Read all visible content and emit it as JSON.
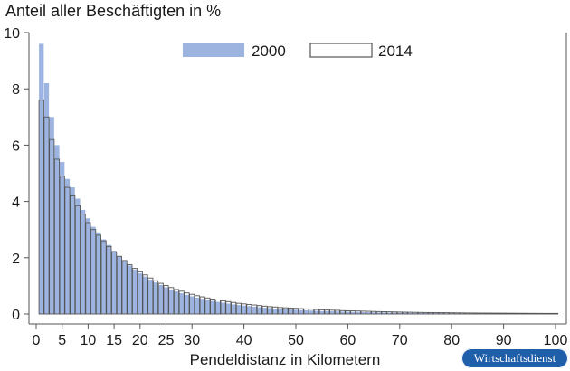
{
  "chart_data": {
    "type": "bar",
    "ylabel": "Anteil aller Beschäftigten in %",
    "xlabel": "Pendeldistanz in Kilometern",
    "xlim": [
      0,
      100
    ],
    "ylim": [
      0,
      10
    ],
    "y_ticks": [
      0,
      2,
      4,
      6,
      8,
      10
    ],
    "x_ticks": [
      0,
      5,
      10,
      15,
      20,
      25,
      30,
      40,
      50,
      60,
      70,
      80,
      90,
      100
    ],
    "legend_position": "top-center",
    "colors": {
      "2000": "#9db4e0",
      "2014_outline": "#555555",
      "axis": "#555555"
    },
    "series": [
      {
        "name": "2000",
        "style": "filled",
        "x": [
          1,
          2,
          3,
          4,
          5,
          6,
          7,
          8,
          9,
          10,
          11,
          12,
          13,
          14,
          15,
          16,
          17,
          18,
          19,
          20,
          21,
          22,
          23,
          24,
          25,
          26,
          27,
          28,
          29,
          30,
          31,
          32,
          33,
          34,
          35,
          36,
          37,
          38,
          39,
          40,
          41,
          42,
          43,
          44,
          45,
          46,
          47,
          48,
          49,
          50,
          51,
          52,
          53,
          54,
          55,
          56,
          57,
          58,
          59,
          60,
          61,
          62,
          63,
          64,
          65,
          66,
          67,
          68,
          69,
          70,
          71,
          72,
          73,
          74,
          75,
          76,
          77,
          78,
          79,
          80,
          81,
          82,
          83,
          84,
          85,
          86,
          87,
          88,
          89,
          90,
          91,
          92,
          93,
          94,
          95,
          96,
          97,
          98,
          99,
          100
        ],
        "values": [
          9.6,
          8.2,
          7.0,
          6.0,
          5.4,
          4.8,
          4.5,
          4.1,
          3.7,
          3.4,
          3.1,
          2.9,
          2.65,
          2.45,
          2.25,
          2.05,
          1.88,
          1.72,
          1.58,
          1.45,
          1.33,
          1.22,
          1.12,
          1.03,
          0.95,
          0.87,
          0.8,
          0.74,
          0.68,
          0.63,
          0.58,
          0.54,
          0.5,
          0.46,
          0.43,
          0.4,
          0.37,
          0.34,
          0.32,
          0.3,
          0.28,
          0.26,
          0.24,
          0.22,
          0.21,
          0.19,
          0.18,
          0.17,
          0.16,
          0.15,
          0.14,
          0.13,
          0.12,
          0.11,
          0.105,
          0.1,
          0.095,
          0.09,
          0.085,
          0.08,
          0.075,
          0.07,
          0.066,
          0.062,
          0.058,
          0.055,
          0.052,
          0.049,
          0.046,
          0.043,
          0.041,
          0.039,
          0.037,
          0.035,
          0.033,
          0.031,
          0.029,
          0.028,
          0.027,
          0.026,
          0.025,
          0.024,
          0.023,
          0.022,
          0.021,
          0.02,
          0.019,
          0.018,
          0.017,
          0.016,
          0.016,
          0.015,
          0.015,
          0.014,
          0.014,
          0.013,
          0.013,
          0.012,
          0.012,
          0.012
        ]
      },
      {
        "name": "2014",
        "style": "outline",
        "x": [
          1,
          2,
          3,
          4,
          5,
          6,
          7,
          8,
          9,
          10,
          11,
          12,
          13,
          14,
          15,
          16,
          17,
          18,
          19,
          20,
          21,
          22,
          23,
          24,
          25,
          26,
          27,
          28,
          29,
          30,
          31,
          32,
          33,
          34,
          35,
          36,
          37,
          38,
          39,
          40,
          41,
          42,
          43,
          44,
          45,
          46,
          47,
          48,
          49,
          50,
          51,
          52,
          53,
          54,
          55,
          56,
          57,
          58,
          59,
          60,
          61,
          62,
          63,
          64,
          65,
          66,
          67,
          68,
          69,
          70,
          71,
          72,
          73,
          74,
          75,
          76,
          77,
          78,
          79,
          80,
          81,
          82,
          83,
          84,
          85,
          86,
          87,
          88,
          89,
          90,
          91,
          92,
          93,
          94,
          95,
          96,
          97,
          98,
          99,
          100
        ],
        "values": [
          7.6,
          7.0,
          6.2,
          5.5,
          4.9,
          4.5,
          4.2,
          3.85,
          3.55,
          3.25,
          3.0,
          2.8,
          2.6,
          2.4,
          2.2,
          2.05,
          1.9,
          1.75,
          1.62,
          1.5,
          1.39,
          1.28,
          1.18,
          1.09,
          1.01,
          0.94,
          0.87,
          0.81,
          0.75,
          0.7,
          0.65,
          0.61,
          0.57,
          0.53,
          0.5,
          0.47,
          0.44,
          0.41,
          0.38,
          0.36,
          0.34,
          0.32,
          0.3,
          0.28,
          0.26,
          0.25,
          0.23,
          0.22,
          0.21,
          0.2,
          0.19,
          0.18,
          0.17,
          0.16,
          0.15,
          0.14,
          0.135,
          0.13,
          0.12,
          0.115,
          0.11,
          0.105,
          0.1,
          0.095,
          0.09,
          0.085,
          0.08,
          0.076,
          0.072,
          0.068,
          0.064,
          0.061,
          0.058,
          0.055,
          0.052,
          0.05,
          0.048,
          0.046,
          0.044,
          0.042,
          0.04,
          0.038,
          0.036,
          0.034,
          0.033,
          0.032,
          0.031,
          0.03,
          0.029,
          0.028,
          0.027,
          0.026,
          0.025,
          0.024,
          0.023,
          0.022,
          0.021,
          0.02,
          0.02,
          0.02
        ]
      }
    ]
  },
  "brand": {
    "label": "Wirtschaftsdienst"
  }
}
